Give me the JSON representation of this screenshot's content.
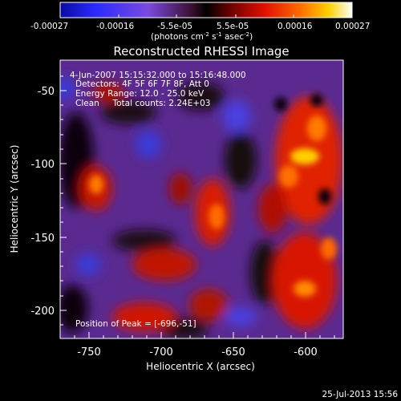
{
  "colorbar": {
    "ticks": [
      "-0.00027",
      "-0.00016",
      "-5.5e-05",
      "5.5e-05",
      "0.00016",
      "0.00027"
    ],
    "units_base": "(photons cm",
    "units_exp1": "-2",
    "units_mid": " s",
    "units_exp2": "-1",
    "units_end": " asec",
    "units_exp3": "-2",
    "units_close": ")"
  },
  "title": "Reconstructed RHESSI Image",
  "annotations": {
    "line1": "4-Jun-2007 15:15:32.000 to 15:16:48.000",
    "line2": "Detectors: 4F 5F 6F 7F 8F, Att 0",
    "line3": "Energy Range: 12.0 - 25.0 keV",
    "line4": "Clean     Total counts: 2.24E+03",
    "peak": "Position of Peak = [-696,-51]"
  },
  "axes": {
    "xlabel": "Heliocentric X (arcsec)",
    "ylabel": "Heliocentric Y (arcsec)",
    "xticks": [
      "-750",
      "-700",
      "-650",
      "-600"
    ],
    "yticks": [
      "-50",
      "-100",
      "-150",
      "-200"
    ]
  },
  "footer": {
    "timestamp": "25-Jul-2013 15:56"
  }
}
